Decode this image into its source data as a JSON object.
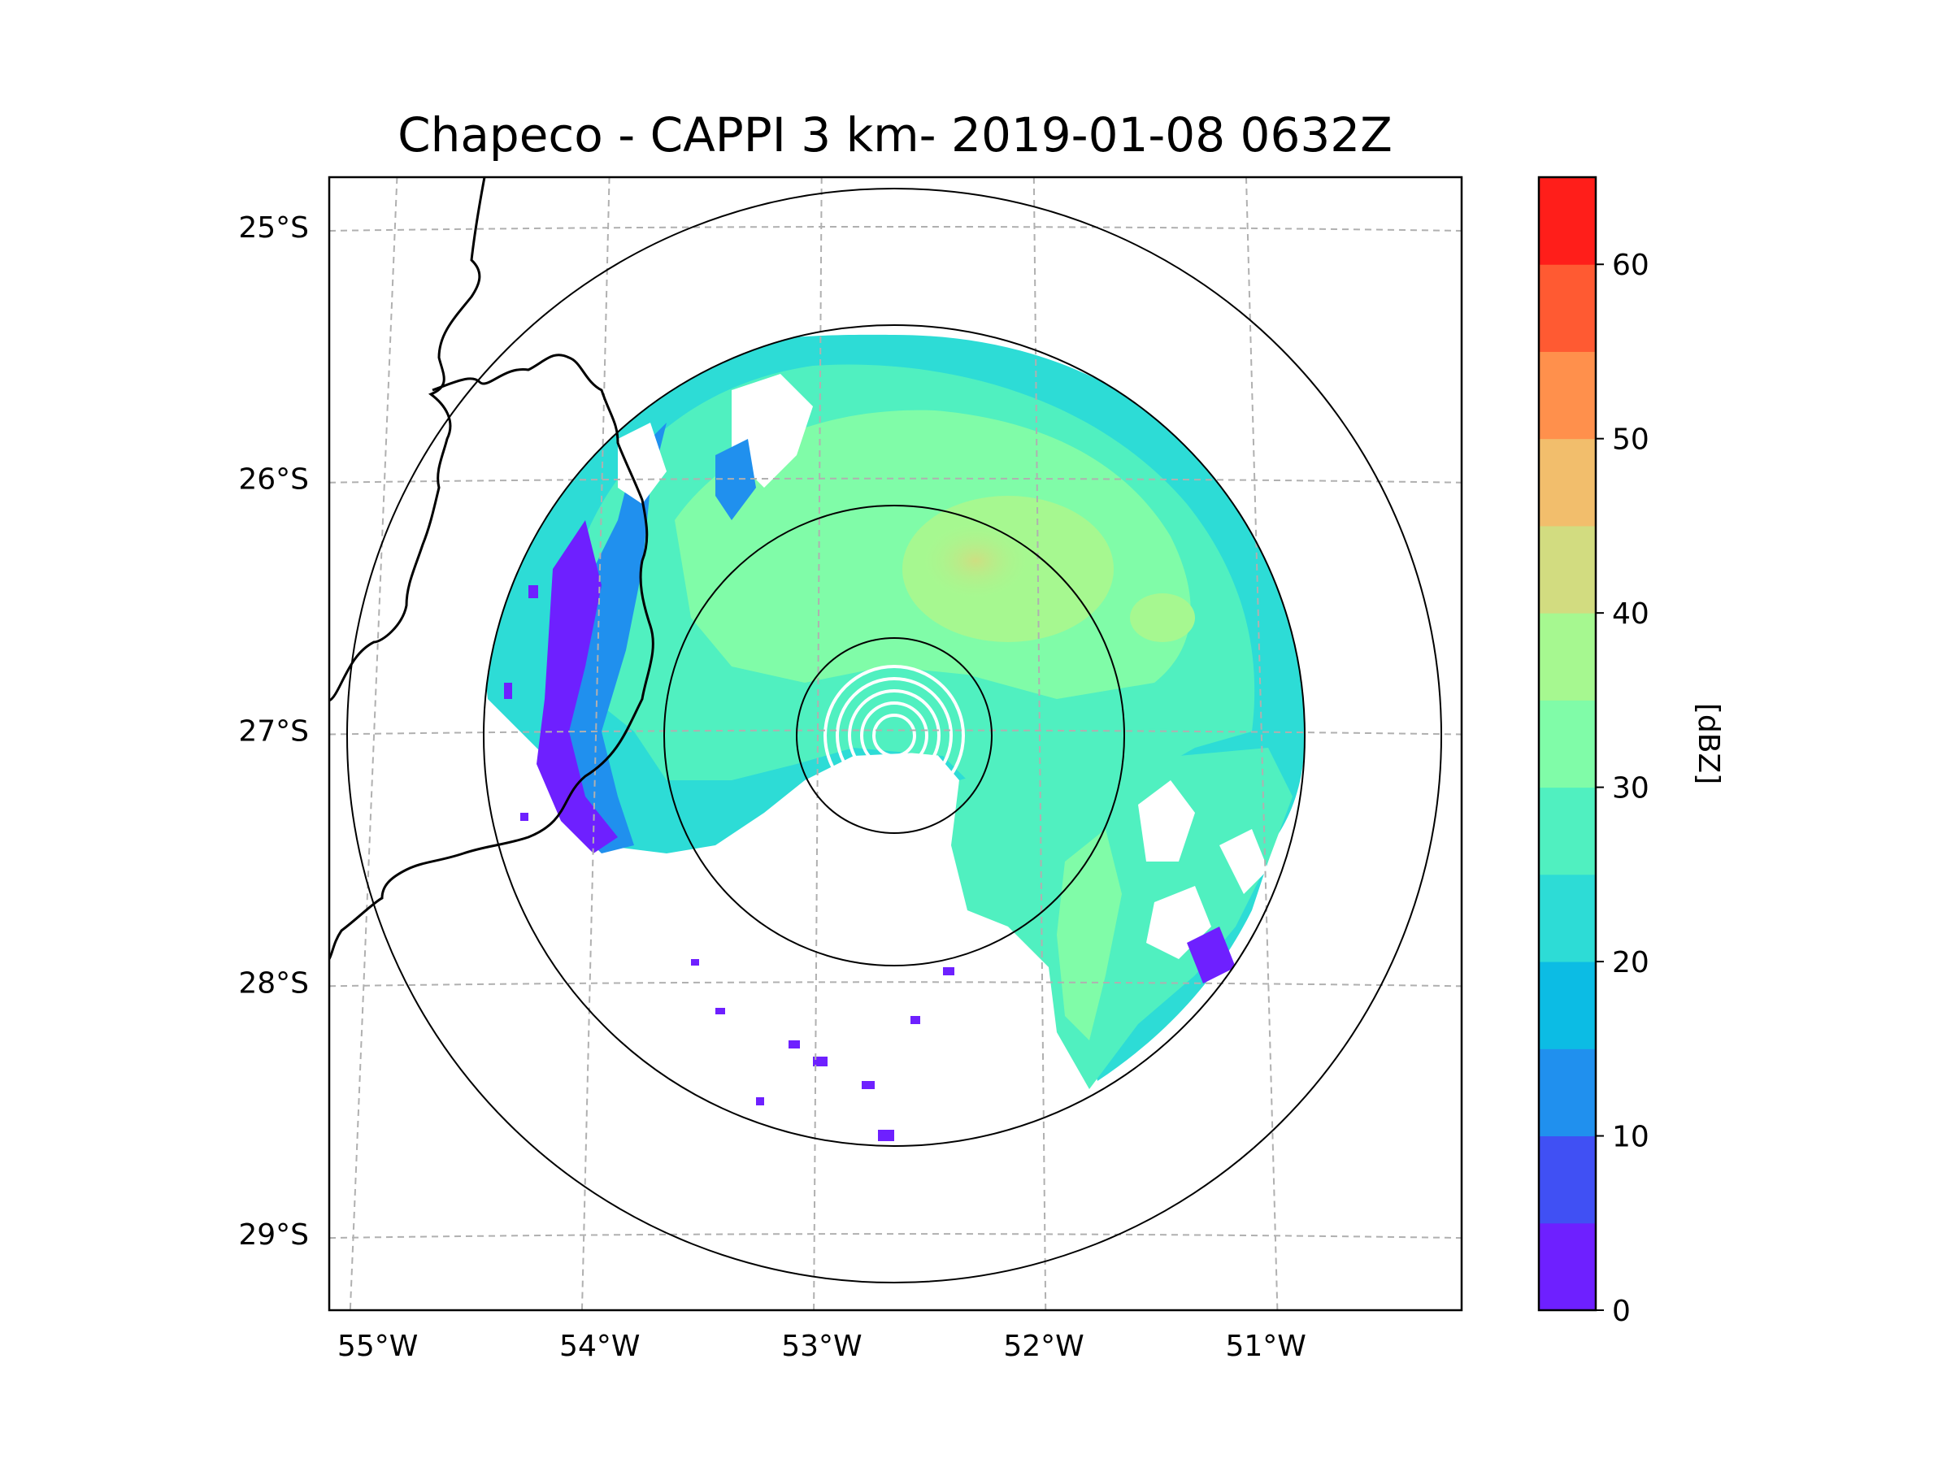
{
  "title": "Chapeco - CAPPI 3 km- 2019-01-08 0632Z",
  "map": {
    "lon_range": [
      -55.2,
      -50.1
    ],
    "lat_range": [
      -29.3,
      -24.8
    ],
    "radar_site": {
      "lon": -52.6,
      "lat": -27.0
    },
    "range_rings_km": [
      50,
      100,
      200,
      250
    ],
    "lat_ticks": [
      {
        "value": -25,
        "label": "25°S"
      },
      {
        "value": -26,
        "label": "26°S"
      },
      {
        "value": -27,
        "label": "27°S"
      },
      {
        "value": -28,
        "label": "28°S"
      },
      {
        "value": -29,
        "label": "29°S"
      }
    ],
    "lon_ticks": [
      {
        "value": -55,
        "label": "55°W"
      },
      {
        "value": -54,
        "label": "54°W"
      },
      {
        "value": -53,
        "label": "53°W"
      },
      {
        "value": -52,
        "label": "52°W"
      },
      {
        "value": -51,
        "label": "51°W"
      }
    ],
    "gridlines": true
  },
  "colorbar": {
    "label": "[dBZ]",
    "min": 0,
    "max": 65,
    "step": 5,
    "tick_labels": [
      "0",
      "10",
      "20",
      "30",
      "40",
      "50",
      "60"
    ],
    "colors": [
      "#6e20ff",
      "#4050f4",
      "#2090ee",
      "#0cbce4",
      "#2ddcd6",
      "#50f0c0",
      "#80fca8",
      "#a6f890",
      "#d2dc80",
      "#f2be6c",
      "#ff904c",
      "#ff5a32",
      "#ff1e1a"
    ]
  }
}
